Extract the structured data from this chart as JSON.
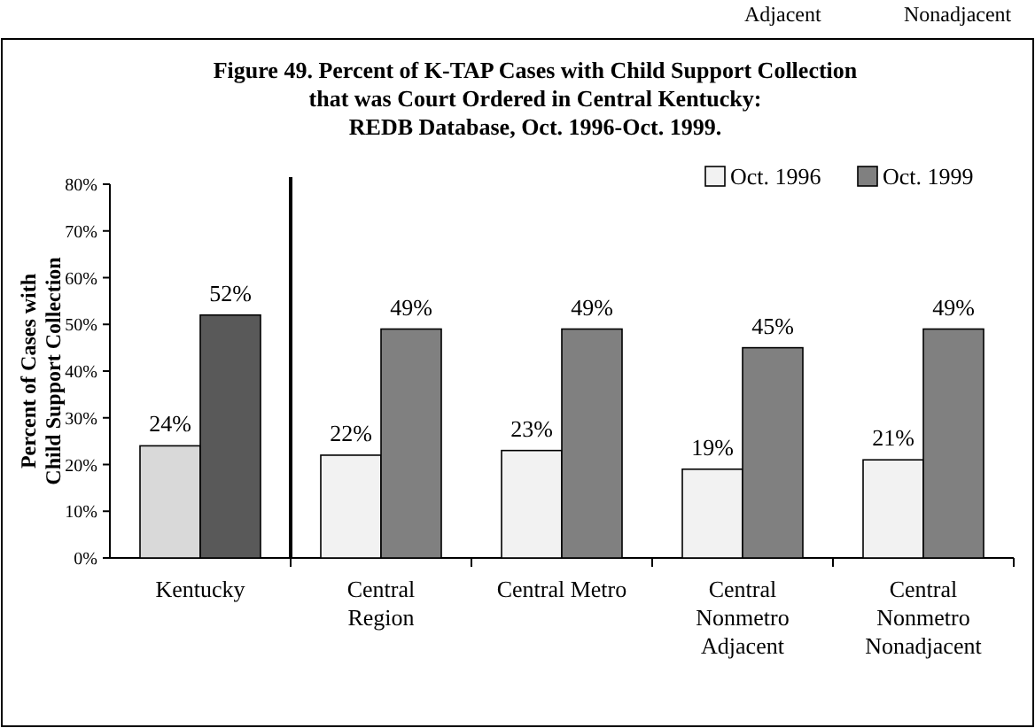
{
  "chart_data": {
    "type": "bar",
    "title": "Figure 49.  Percent of K-TAP Cases with Child Support Collection\nthat was Court Ordered in Central Kentucky:\nREDB Database, Oct. 1996-Oct. 1999.",
    "annotations": [
      "Adjacent",
      "Nonadjacent"
    ],
    "ylabel": "Percent of Cases with\nChild Support Collection",
    "categories": [
      "Kentucky",
      "Central\nRegion",
      "Central Metro",
      "Central\nNonmetro\nAdjacent",
      "Central\nNonmetro\nNonadjacent"
    ],
    "series": [
      {
        "name": "Oct. 1996",
        "color": "#f2f2f2",
        "colors": [
          "#d9d9d9",
          "#f2f2f2",
          "#f2f2f2",
          "#f2f2f2",
          "#f2f2f2"
        ],
        "values": [
          24,
          22,
          23,
          19,
          21
        ],
        "value_labels": [
          "24%",
          "22%",
          "23%",
          "19%",
          "21%"
        ]
      },
      {
        "name": "Oct. 1999",
        "color": "#808080",
        "colors": [
          "#595959",
          "#808080",
          "#808080",
          "#808080",
          "#808080"
        ],
        "values": [
          52,
          49,
          49,
          45,
          49
        ],
        "value_labels": [
          "52%",
          "49%",
          "49%",
          "45%",
          "49%"
        ]
      }
    ],
    "ylim": [
      0,
      80
    ],
    "yticks": [
      {
        "value": 0,
        "label": "0%"
      },
      {
        "value": 10,
        "label": "10%"
      },
      {
        "value": 20,
        "label": "20%"
      },
      {
        "value": 30,
        "label": "30%"
      },
      {
        "value": 40,
        "label": "40%"
      },
      {
        "value": 50,
        "label": "50%"
      },
      {
        "value": 60,
        "label": "60%"
      },
      {
        "value": 70,
        "label": "70%"
      },
      {
        "value": 80,
        "label": "80%"
      }
    ],
    "legend": "top right",
    "grid": false
  }
}
